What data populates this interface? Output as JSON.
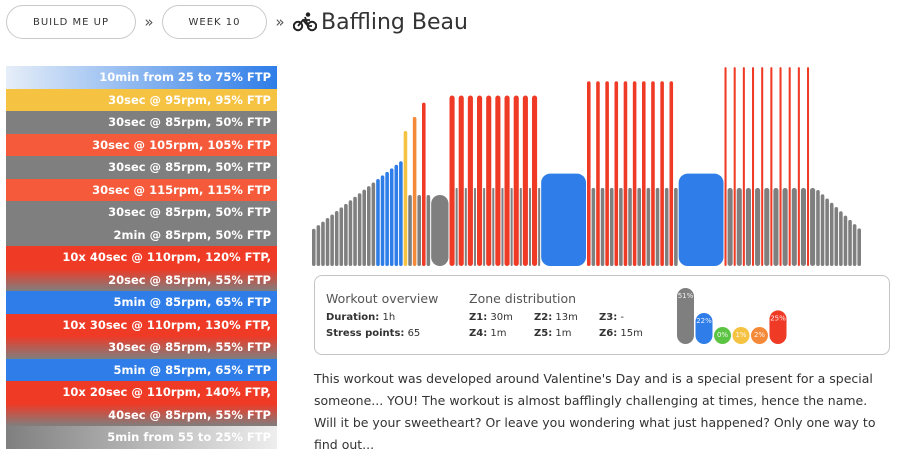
{
  "breadcrumb": {
    "items": [
      "BUILD ME UP",
      "WEEK 10"
    ],
    "separator": "»",
    "title": "Baffling Beau",
    "icon": "bicycle-icon"
  },
  "steps": [
    {
      "label": "10min from 25 to 75% FTP",
      "color": "#2e7de8",
      "gradient_from": "#e6eef8"
    },
    {
      "label": "30sec @ 95rpm, 95% FTP",
      "color": "#f5c242"
    },
    {
      "label": "30sec @ 85rpm, 50% FTP",
      "color": "#7f7f7f"
    },
    {
      "label": "30sec @ 105rpm, 105% FTP",
      "color": "#f55a3a"
    },
    {
      "label": "30sec @ 85rpm, 50% FTP",
      "color": "#7f7f7f"
    },
    {
      "label": "30sec @ 115rpm, 115% FTP",
      "color": "#f55a3a"
    },
    {
      "label": "30sec @ 85rpm, 50% FTP",
      "color": "#7f7f7f"
    },
    {
      "label": "2min @ 85rpm, 50% FTP",
      "color": "#7f7f7f"
    },
    {
      "label": "10x 40sec @ 110rpm, 120% FTP,",
      "color": "#ef3a26"
    },
    {
      "label": "20sec @ 85rpm, 55% FTP",
      "color": "#7f7f7f",
      "gradient_from": "#ef3a26"
    },
    {
      "label": "5min @ 85rpm, 65% FTP",
      "color": "#2e7de8"
    },
    {
      "label": "10x 30sec @ 110rpm, 130% FTP,",
      "color": "#ef3a26"
    },
    {
      "label": "30sec @ 85rpm, 55% FTP",
      "color": "#7f7f7f",
      "gradient_from": "#ef3a26"
    },
    {
      "label": "5min @ 85rpm, 65% FTP",
      "color": "#2e7de8"
    },
    {
      "label": "10x 20sec @ 110rpm, 140% FTP,",
      "color": "#ef3a26"
    },
    {
      "label": "40sec @ 85rpm, 55% FTP",
      "color": "#7f7f7f",
      "gradient_from": "#ef3a26"
    },
    {
      "label": "5min from 55 to 25% FTP",
      "color": "#7f7f7f",
      "gradient_to": "#eeeeee"
    }
  ],
  "profile": {
    "blocks": [
      {
        "type": "ramp",
        "from": 25,
        "to": 75,
        "minutes": 10
      },
      {
        "type": "bar",
        "pct": 95,
        "minutes": 0.5
      },
      {
        "type": "bar",
        "pct": 50,
        "minutes": 0.5
      },
      {
        "type": "bar",
        "pct": 105,
        "minutes": 0.5
      },
      {
        "type": "bar",
        "pct": 50,
        "minutes": 0.5
      },
      {
        "type": "bar",
        "pct": 115,
        "minutes": 0.5
      },
      {
        "type": "bar",
        "pct": 50,
        "minutes": 0.5
      },
      {
        "type": "bar",
        "pct": 50,
        "minutes": 2
      },
      {
        "type": "interval",
        "reps": 10,
        "on_pct": 120,
        "on_minutes": 0.667,
        "off_pct": 55,
        "off_minutes": 0.333
      },
      {
        "type": "bar",
        "pct": 65,
        "minutes": 5
      },
      {
        "type": "interval",
        "reps": 10,
        "on_pct": 130,
        "on_minutes": 0.5,
        "off_pct": 55,
        "off_minutes": 0.5
      },
      {
        "type": "bar",
        "pct": 65,
        "minutes": 5
      },
      {
        "type": "interval",
        "reps": 10,
        "on_pct": 140,
        "on_minutes": 0.333,
        "off_pct": 55,
        "off_minutes": 0.667
      },
      {
        "type": "ramp",
        "from": 55,
        "to": 25,
        "minutes": 5
      }
    ]
  },
  "overview": {
    "heading": "Workout overview",
    "duration_label": "Duration:",
    "duration_value": " 1h",
    "stress_label": "Stress points:",
    "stress_value": " 65",
    "zone_heading": "Zone distribution",
    "zones": [
      {
        "label": "Z1:",
        "value": " 30m"
      },
      {
        "label": "Z2:",
        "value": " 13m"
      },
      {
        "label": "Z3:",
        "value": " -"
      },
      {
        "label": "Z4:",
        "value": " 1m"
      },
      {
        "label": "Z5:",
        "value": " 1m"
      },
      {
        "label": "Z6:",
        "value": " 15m"
      }
    ],
    "zone_pcts": [
      {
        "label": "51%",
        "value": 51,
        "color": "#7f7f7f"
      },
      {
        "label": "22%",
        "value": 22,
        "color": "#2e7de8"
      },
      {
        "label": "0%",
        "value": 0,
        "color": "#5cc443"
      },
      {
        "label": "1%",
        "value": 1,
        "color": "#f5c242"
      },
      {
        "label": "2%",
        "value": 2,
        "color": "#f5893a"
      },
      {
        "label": "25%",
        "value": 25,
        "color": "#ef3a26"
      }
    ]
  },
  "description": "This workout was developed around Valentine's Day and is a special present for a special someone... YOU! The workout is almost bafflingly challenging at times, hence the name. Will it be your sweetheart? Or leave you wondering what just happened? Only one way to find out..."
}
